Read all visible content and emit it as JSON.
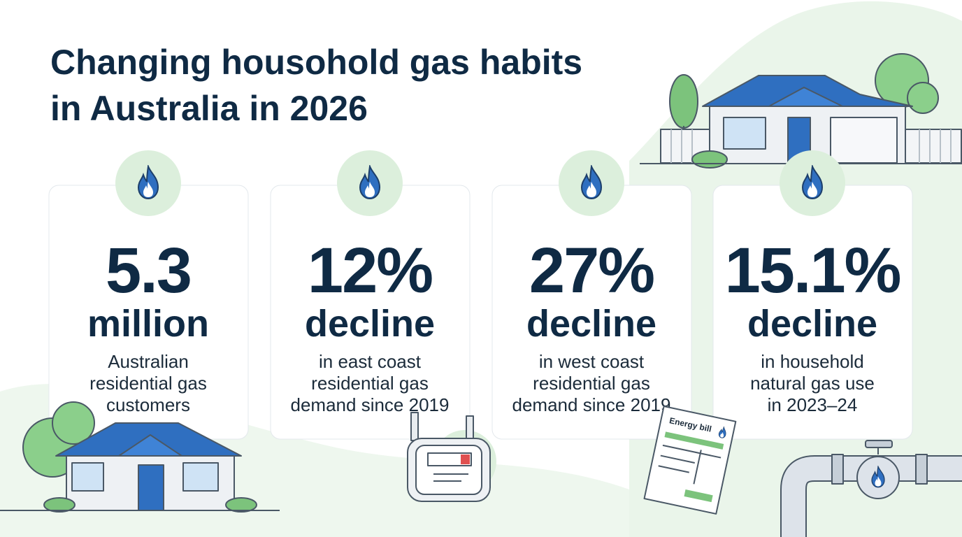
{
  "header": {
    "title_lines": [
      "Changing housohold gas habits",
      "in Australia in 2026"
    ]
  },
  "cards": [
    {
      "stat": "5.3",
      "unit": "million",
      "description_lines": [
        "Australian",
        "residential gas",
        "customers"
      ]
    },
    {
      "stat": "12%",
      "unit": "decline",
      "description_lines": [
        "in east coast",
        "residential gas",
        "demand since 2019"
      ]
    },
    {
      "stat": "27%",
      "unit": "decline",
      "description_lines": [
        "in west coast",
        "residential gas",
        "demand since 2019"
      ]
    },
    {
      "stat": "15.1%",
      "unit": "decline",
      "description_lines": [
        "in household",
        "natural gas use",
        "in 2023–24"
      ]
    }
  ],
  "illustrations": {
    "bill_label": "Energy bill"
  }
}
